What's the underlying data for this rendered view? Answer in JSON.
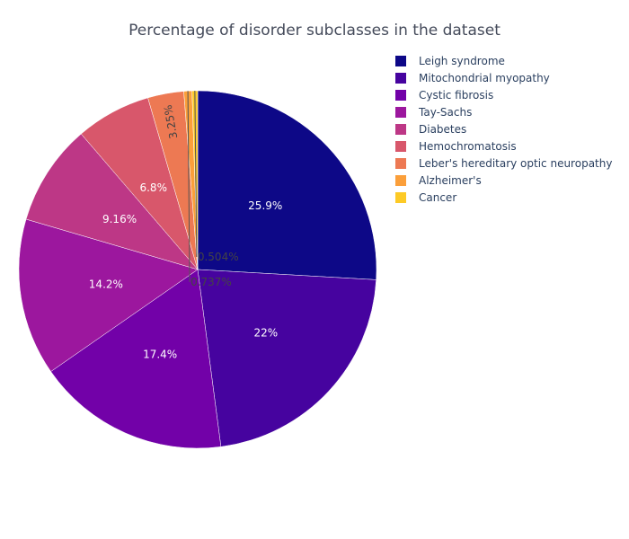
{
  "chart_data": {
    "type": "pie",
    "title": "Percentage of disorder subclasses in the dataset",
    "labels": [
      "Leigh syndrome",
      "Mitochondrial myopathy",
      "Cystic fibrosis",
      "Tay-Sachs",
      "Diabetes",
      "Hemochromatosis",
      "Leber's hereditary optic neuropathy",
      "Alzheimer's",
      "Cancer"
    ],
    "values": [
      25.9,
      22.0,
      17.4,
      14.2,
      9.16,
      6.8,
      3.25,
      0.737,
      0.504
    ],
    "value_labels": [
      "25.9%",
      "22%",
      "17.4%",
      "14.2%",
      "9.16%",
      "6.8%",
      "3.25%",
      "0.737%",
      "0.504%"
    ],
    "colors": [
      "#0d0887",
      "#46039f",
      "#7201a8",
      "#9c179e",
      "#bd3786",
      "#d8576b",
      "#ed7953",
      "#fb9f3a",
      "#fdca26"
    ],
    "legend_position": "top-right"
  }
}
